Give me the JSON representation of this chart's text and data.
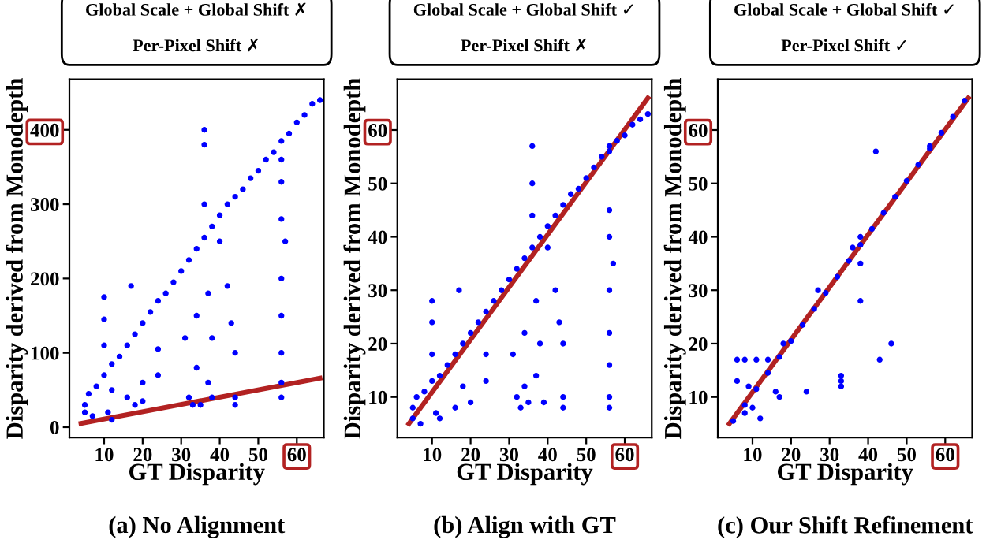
{
  "chart_data": [
    {
      "type": "scatter",
      "xlabel": "GT Disparity",
      "ylabel": "Disparity derived from Monodepth",
      "annotations": [
        "Global Scale + Global Shift ✗",
        "Per-Pixel Shift ✗",
        "(a) No Alignment"
      ],
      "xlim": [
        1,
        67
      ],
      "ylim": [
        -14,
        468
      ],
      "xticks": [
        10,
        20,
        30,
        40,
        50,
        60
      ],
      "yticks": [
        0,
        100,
        200,
        300,
        400
      ],
      "grid": false,
      "series": [
        {
          "color": "#0000ff",
          "x": [
            5,
            6,
            8,
            10,
            12,
            14,
            16,
            18,
            20,
            22,
            24,
            26,
            28,
            30,
            32,
            34,
            36,
            38,
            40,
            42,
            44,
            46,
            48,
            50,
            52,
            54,
            56,
            58,
            60,
            62,
            64,
            66,
            5,
            7,
            10,
            10,
            10,
            11,
            12,
            12,
            16,
            17,
            18,
            20,
            20,
            24,
            24,
            31,
            32,
            33,
            34,
            34,
            35,
            36,
            36,
            36,
            37,
            37,
            38,
            38,
            40,
            42,
            43,
            44,
            44,
            44,
            56,
            56,
            56,
            56,
            56,
            56,
            56,
            56,
            57
          ],
          "values": [
            30,
            45,
            55,
            70,
            85,
            95,
            110,
            125,
            140,
            155,
            170,
            180,
            195,
            210,
            225,
            240,
            255,
            270,
            285,
            300,
            310,
            320,
            335,
            345,
            360,
            370,
            385,
            395,
            410,
            420,
            435,
            440,
            20,
            15,
            175,
            145,
            110,
            20,
            50,
            10,
            40,
            190,
            30,
            60,
            35,
            105,
            70,
            120,
            40,
            30,
            80,
            150,
            30,
            400,
            380,
            300,
            180,
            60,
            120,
            40,
            250,
            190,
            140,
            100,
            40,
            30,
            360,
            330,
            280,
            200,
            150,
            100,
            60,
            40,
            250
          ]
        },
        {
          "type": "line",
          "color": "#b22222",
          "x": [
            4,
            66
          ],
          "values": [
            5,
            66
          ]
        }
      ]
    },
    {
      "type": "scatter",
      "xlabel": "GT Disparity",
      "ylabel": "Disparity derived from Monodepth",
      "annotations": [
        "Global Scale + Global Shift ✓",
        "Per-Pixel Shift ✗",
        "(b) Align with GT"
      ],
      "xlim": [
        1,
        67
      ],
      "ylim": [
        2.4,
        69.5
      ],
      "xticks": [
        10,
        20,
        30,
        40,
        50,
        60
      ],
      "yticks": [
        10,
        20,
        30,
        40,
        50,
        60
      ],
      "grid": false,
      "series": [
        {
          "color": "#0000ff",
          "x": [
            5,
            6,
            8,
            10,
            12,
            14,
            16,
            18,
            20,
            22,
            24,
            26,
            28,
            30,
            32,
            34,
            36,
            38,
            40,
            42,
            44,
            46,
            48,
            50,
            52,
            54,
            56,
            58,
            60,
            62,
            64,
            66,
            5,
            7,
            10,
            10,
            10,
            11,
            12,
            16,
            17,
            18,
            20,
            24,
            24,
            31,
            32,
            33,
            34,
            34,
            35,
            36,
            36,
            36,
            37,
            37,
            38,
            39,
            40,
            42,
            43,
            44,
            44,
            44,
            56,
            56,
            56,
            56,
            56,
            56,
            56,
            56,
            57
          ],
          "values": [
            8,
            10,
            11,
            13,
            14,
            16,
            18,
            20,
            22,
            24,
            26,
            28,
            30,
            32,
            34,
            36,
            38,
            40,
            42,
            44,
            46,
            48,
            49,
            51,
            53,
            55,
            57,
            58,
            59,
            61,
            62,
            63,
            6,
            5,
            28,
            24,
            18,
            7,
            6,
            8,
            30,
            12,
            9,
            18,
            13,
            18,
            10,
            8,
            12,
            22,
            9,
            57,
            50,
            44,
            28,
            14,
            20,
            9,
            38,
            30,
            24,
            20,
            10,
            8,
            56,
            45,
            40,
            30,
            22,
            16,
            10,
            8,
            35
          ]
        },
        {
          "type": "line",
          "color": "#b22222",
          "x": [
            4,
            66
          ],
          "values": [
            5,
            66
          ]
        }
      ]
    },
    {
      "type": "scatter",
      "xlabel": "GT Disparity",
      "ylabel": "Disparity derived from Monodepth",
      "annotations": [
        "Global Scale + Global Shift ✓",
        "Per-Pixel Shift ✓",
        "(c) Our Shift Refinement"
      ],
      "xlim": [
        1,
        67
      ],
      "ylim": [
        2.4,
        69.5
      ],
      "xticks": [
        10,
        20,
        30,
        40,
        50,
        60
      ],
      "yticks": [
        10,
        20,
        30,
        40,
        50,
        60
      ],
      "grid": false,
      "series": [
        {
          "color": "#0000ff",
          "x": [
            5,
            8,
            11,
            14,
            17,
            20,
            23,
            26,
            29,
            32,
            35,
            38,
            41,
            44,
            47,
            50,
            53,
            56,
            59,
            62,
            65,
            6,
            8,
            6,
            9,
            11,
            12,
            16,
            17,
            24,
            27,
            33,
            33,
            33,
            36,
            38,
            38,
            38,
            42,
            43,
            46,
            56,
            18,
            14,
            10,
            8
          ],
          "values": [
            5.5,
            8.5,
            11.5,
            14.5,
            17.5,
            20.5,
            23.5,
            26.5,
            29.5,
            32.5,
            35.5,
            38.5,
            41.5,
            44.5,
            47.5,
            50.5,
            53.5,
            56.5,
            59.5,
            62.5,
            65.5,
            17,
            17,
            13,
            12,
            17,
            6,
            11,
            10,
            11,
            30,
            14,
            13,
            12,
            38,
            40,
            35,
            28,
            56,
            17,
            20,
            57,
            20,
            17,
            8,
            7
          ]
        },
        {
          "type": "line",
          "color": "#b22222",
          "x": [
            4,
            66
          ],
          "values": [
            5,
            66
          ]
        }
      ]
    }
  ]
}
